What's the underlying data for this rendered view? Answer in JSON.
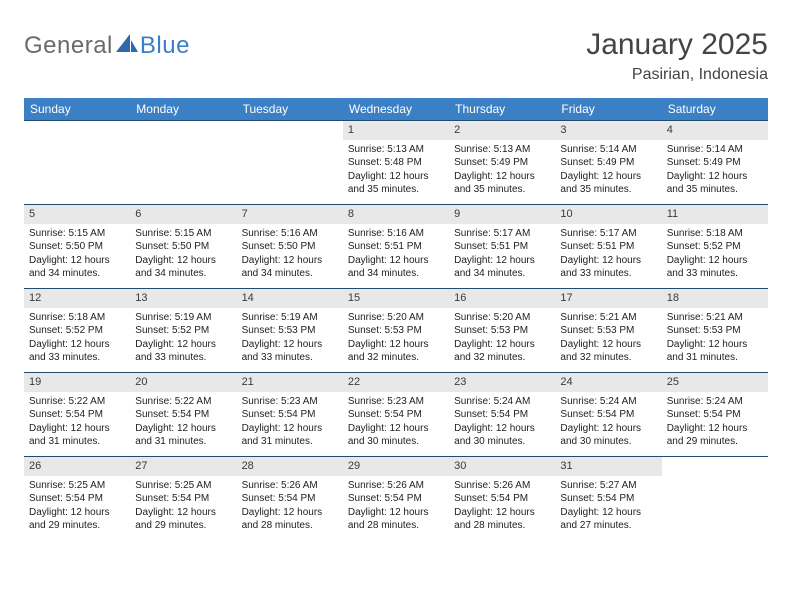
{
  "logo": {
    "part1": "General",
    "part2": "Blue",
    "sail_color": "#2f6aa8",
    "text_color": "#6a6a6a"
  },
  "title": "January 2025",
  "location": "Pasirian, Indonesia",
  "header_bg": "#3b7fc4",
  "header_text": "#ffffff",
  "cell_rule": "#244a6e",
  "daynum_bg": "#e8e8e8",
  "page_bg": "#ffffff",
  "body_text": "#222222",
  "weekdays": [
    "Sunday",
    "Monday",
    "Tuesday",
    "Wednesday",
    "Thursday",
    "Friday",
    "Saturday"
  ],
  "weeks": [
    [
      {
        "n": "",
        "sr": "",
        "ss": "",
        "dl": ""
      },
      {
        "n": "",
        "sr": "",
        "ss": "",
        "dl": ""
      },
      {
        "n": "",
        "sr": "",
        "ss": "",
        "dl": ""
      },
      {
        "n": "1",
        "sr": "Sunrise: 5:13 AM",
        "ss": "Sunset: 5:48 PM",
        "dl": "Daylight: 12 hours and 35 minutes."
      },
      {
        "n": "2",
        "sr": "Sunrise: 5:13 AM",
        "ss": "Sunset: 5:49 PM",
        "dl": "Daylight: 12 hours and 35 minutes."
      },
      {
        "n": "3",
        "sr": "Sunrise: 5:14 AM",
        "ss": "Sunset: 5:49 PM",
        "dl": "Daylight: 12 hours and 35 minutes."
      },
      {
        "n": "4",
        "sr": "Sunrise: 5:14 AM",
        "ss": "Sunset: 5:49 PM",
        "dl": "Daylight: 12 hours and 35 minutes."
      }
    ],
    [
      {
        "n": "5",
        "sr": "Sunrise: 5:15 AM",
        "ss": "Sunset: 5:50 PM",
        "dl": "Daylight: 12 hours and 34 minutes."
      },
      {
        "n": "6",
        "sr": "Sunrise: 5:15 AM",
        "ss": "Sunset: 5:50 PM",
        "dl": "Daylight: 12 hours and 34 minutes."
      },
      {
        "n": "7",
        "sr": "Sunrise: 5:16 AM",
        "ss": "Sunset: 5:50 PM",
        "dl": "Daylight: 12 hours and 34 minutes."
      },
      {
        "n": "8",
        "sr": "Sunrise: 5:16 AM",
        "ss": "Sunset: 5:51 PM",
        "dl": "Daylight: 12 hours and 34 minutes."
      },
      {
        "n": "9",
        "sr": "Sunrise: 5:17 AM",
        "ss": "Sunset: 5:51 PM",
        "dl": "Daylight: 12 hours and 34 minutes."
      },
      {
        "n": "10",
        "sr": "Sunrise: 5:17 AM",
        "ss": "Sunset: 5:51 PM",
        "dl": "Daylight: 12 hours and 33 minutes."
      },
      {
        "n": "11",
        "sr": "Sunrise: 5:18 AM",
        "ss": "Sunset: 5:52 PM",
        "dl": "Daylight: 12 hours and 33 minutes."
      }
    ],
    [
      {
        "n": "12",
        "sr": "Sunrise: 5:18 AM",
        "ss": "Sunset: 5:52 PM",
        "dl": "Daylight: 12 hours and 33 minutes."
      },
      {
        "n": "13",
        "sr": "Sunrise: 5:19 AM",
        "ss": "Sunset: 5:52 PM",
        "dl": "Daylight: 12 hours and 33 minutes."
      },
      {
        "n": "14",
        "sr": "Sunrise: 5:19 AM",
        "ss": "Sunset: 5:53 PM",
        "dl": "Daylight: 12 hours and 33 minutes."
      },
      {
        "n": "15",
        "sr": "Sunrise: 5:20 AM",
        "ss": "Sunset: 5:53 PM",
        "dl": "Daylight: 12 hours and 32 minutes."
      },
      {
        "n": "16",
        "sr": "Sunrise: 5:20 AM",
        "ss": "Sunset: 5:53 PM",
        "dl": "Daylight: 12 hours and 32 minutes."
      },
      {
        "n": "17",
        "sr": "Sunrise: 5:21 AM",
        "ss": "Sunset: 5:53 PM",
        "dl": "Daylight: 12 hours and 32 minutes."
      },
      {
        "n": "18",
        "sr": "Sunrise: 5:21 AM",
        "ss": "Sunset: 5:53 PM",
        "dl": "Daylight: 12 hours and 31 minutes."
      }
    ],
    [
      {
        "n": "19",
        "sr": "Sunrise: 5:22 AM",
        "ss": "Sunset: 5:54 PM",
        "dl": "Daylight: 12 hours and 31 minutes."
      },
      {
        "n": "20",
        "sr": "Sunrise: 5:22 AM",
        "ss": "Sunset: 5:54 PM",
        "dl": "Daylight: 12 hours and 31 minutes."
      },
      {
        "n": "21",
        "sr": "Sunrise: 5:23 AM",
        "ss": "Sunset: 5:54 PM",
        "dl": "Daylight: 12 hours and 31 minutes."
      },
      {
        "n": "22",
        "sr": "Sunrise: 5:23 AM",
        "ss": "Sunset: 5:54 PM",
        "dl": "Daylight: 12 hours and 30 minutes."
      },
      {
        "n": "23",
        "sr": "Sunrise: 5:24 AM",
        "ss": "Sunset: 5:54 PM",
        "dl": "Daylight: 12 hours and 30 minutes."
      },
      {
        "n": "24",
        "sr": "Sunrise: 5:24 AM",
        "ss": "Sunset: 5:54 PM",
        "dl": "Daylight: 12 hours and 30 minutes."
      },
      {
        "n": "25",
        "sr": "Sunrise: 5:24 AM",
        "ss": "Sunset: 5:54 PM",
        "dl": "Daylight: 12 hours and 29 minutes."
      }
    ],
    [
      {
        "n": "26",
        "sr": "Sunrise: 5:25 AM",
        "ss": "Sunset: 5:54 PM",
        "dl": "Daylight: 12 hours and 29 minutes."
      },
      {
        "n": "27",
        "sr": "Sunrise: 5:25 AM",
        "ss": "Sunset: 5:54 PM",
        "dl": "Daylight: 12 hours and 29 minutes."
      },
      {
        "n": "28",
        "sr": "Sunrise: 5:26 AM",
        "ss": "Sunset: 5:54 PM",
        "dl": "Daylight: 12 hours and 28 minutes."
      },
      {
        "n": "29",
        "sr": "Sunrise: 5:26 AM",
        "ss": "Sunset: 5:54 PM",
        "dl": "Daylight: 12 hours and 28 minutes."
      },
      {
        "n": "30",
        "sr": "Sunrise: 5:26 AM",
        "ss": "Sunset: 5:54 PM",
        "dl": "Daylight: 12 hours and 28 minutes."
      },
      {
        "n": "31",
        "sr": "Sunrise: 5:27 AM",
        "ss": "Sunset: 5:54 PM",
        "dl": "Daylight: 12 hours and 27 minutes."
      },
      {
        "n": "",
        "sr": "",
        "ss": "",
        "dl": ""
      }
    ]
  ]
}
